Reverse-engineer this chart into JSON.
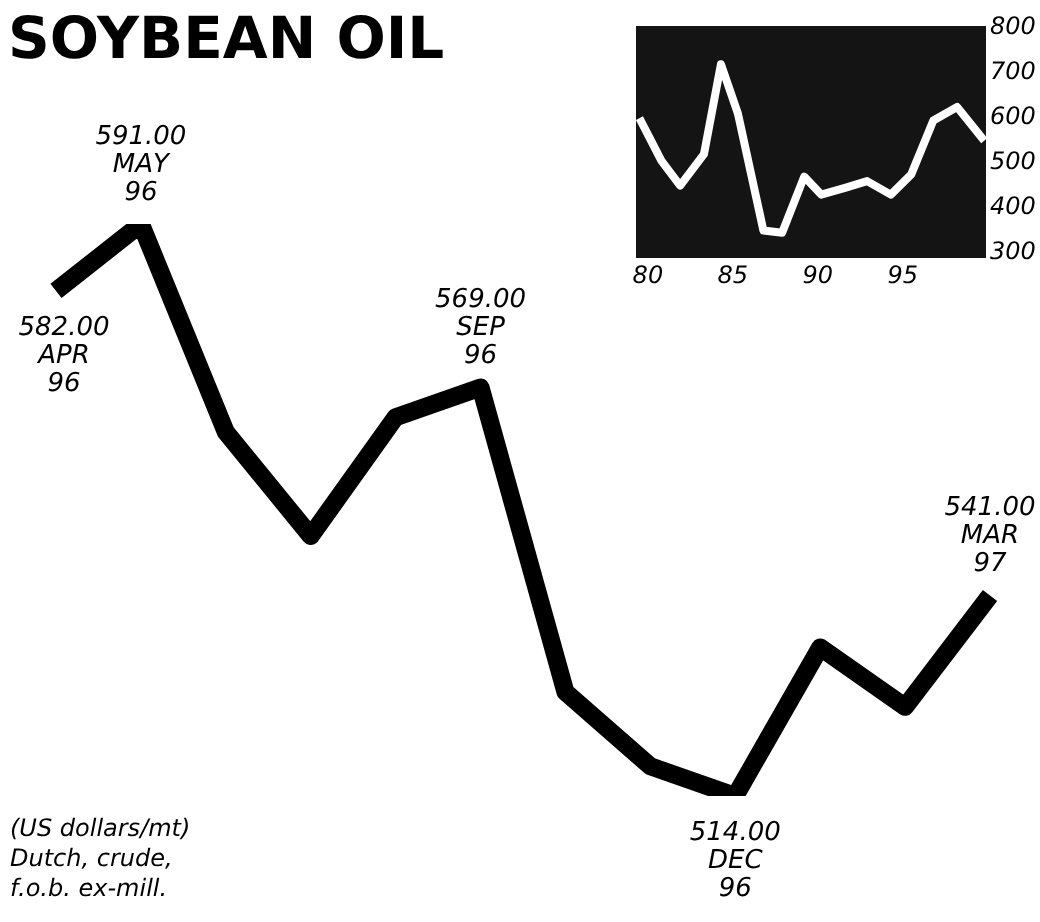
{
  "chart_data": [
    {
      "type": "line",
      "title": "SOYBEAN OIL",
      "categories": [
        null,
        null,
        null,
        null,
        null,
        null,
        null,
        null,
        null,
        null,
        null,
        null
      ],
      "values": [
        582,
        591,
        563,
        549,
        565,
        569,
        528,
        518,
        514,
        534,
        526,
        541
      ],
      "value_labels": [
        "582.00\nAPR\n96",
        "591.00\nMAY\n96",
        null,
        null,
        null,
        "569.00\nSEP\n96",
        null,
        null,
        "514.00\nDEC\n96",
        null,
        null,
        "541.00\nMAR\n97"
      ],
      "color": "#000000",
      "annotations": [
        "(US dollars/mt)\nDutch, crude,\nf.o.b. ex-mill."
      ]
    },
    {
      "type": "line",
      "x": [
        79.5,
        80.8,
        81.9,
        83.3,
        84.3,
        85.3,
        86.8,
        87.9,
        89.2,
        90.2,
        91.6,
        92.9,
        94.3,
        95.5,
        96.8,
        98.2,
        99.8
      ],
      "values": [
        600,
        505,
        450,
        520,
        720,
        610,
        350,
        345,
        470,
        430,
        445,
        460,
        430,
        475,
        595,
        625,
        550
      ],
      "color": "#ffffff",
      "xlim": [
        79.3,
        99.9
      ],
      "ylim": [
        289,
        805
      ],
      "xticks": [
        80,
        85,
        90,
        95
      ],
      "yticks": [
        300,
        400,
        500,
        600,
        700,
        800
      ]
    }
  ]
}
